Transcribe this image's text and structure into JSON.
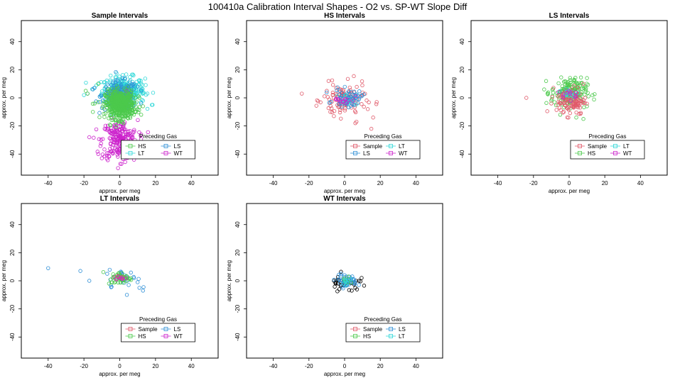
{
  "figure_title": "100410a   Calibration Interval Shapes - O2 vs. SP-WT Slope Diff",
  "colors": {
    "Sample": "#e05a6a",
    "HS": "#4cc94c",
    "LS": "#2e8fd6",
    "LT": "#30d8d8",
    "WT": "#cc22cc",
    "black": "#000000"
  },
  "chart_data": [
    {
      "type": "scatter",
      "title": "Sample Intervals",
      "xlabel": "approx. per meg",
      "ylabel": "approx. per meg",
      "xlim": [
        -55,
        55
      ],
      "ylim": [
        -55,
        55
      ],
      "xticks": [
        -40,
        -20,
        0,
        20,
        40
      ],
      "yticks": [
        -40,
        -20,
        0,
        20,
        40
      ],
      "legend": {
        "title": "Preceding Gas",
        "placement": "bottom-center",
        "entries": [
          "HS",
          "LS",
          "LT",
          "WT"
        ]
      },
      "series": [
        {
          "name": "LT",
          "color_key": "LT",
          "center": [
            2,
            5
          ],
          "spread": [
            6,
            5
          ],
          "count": 320,
          "outliers": [
            [
              -13,
              9
            ],
            [
              -20,
              2
            ],
            [
              -14,
              7
            ],
            [
              12,
              4
            ],
            [
              13,
              -2
            ],
            [
              18,
              -5
            ],
            [
              10,
              -8
            ]
          ]
        },
        {
          "name": "LS",
          "color_key": "LS",
          "center": [
            0,
            2
          ],
          "spread": [
            5,
            5
          ],
          "count": 180,
          "outliers": [
            [
              -18,
              3
            ],
            [
              -15,
              6
            ],
            [
              10,
              8
            ],
            [
              12,
              -4
            ]
          ]
        },
        {
          "name": "WT",
          "color_key": "WT",
          "center": [
            0,
            -30
          ],
          "spread": [
            5,
            7
          ],
          "count": 240,
          "outliers": [
            [
              -12,
              -40
            ],
            [
              -10,
              -43
            ],
            [
              8,
              -44
            ],
            [
              1,
              -47
            ],
            [
              -17,
              -28
            ],
            [
              12,
              -26
            ],
            [
              -4,
              3
            ],
            [
              4,
              5
            ]
          ]
        },
        {
          "name": "HS",
          "color_key": "HS",
          "center": [
            0,
            -5
          ],
          "spread": [
            4,
            5
          ],
          "count": 520,
          "outliers": [
            [
              -18,
              3
            ],
            [
              -19,
              5
            ],
            [
              -14,
              -4
            ],
            [
              -12,
              10
            ],
            [
              -15,
              -10
            ],
            [
              10,
              -8
            ],
            [
              13,
              -6
            ],
            [
              11,
              0
            ],
            [
              8,
              2
            ],
            [
              12,
              -12
            ]
          ]
        }
      ]
    },
    {
      "type": "scatter",
      "title": "HS Intervals",
      "xlabel": "approx. per meg",
      "ylabel": "approx. per meg",
      "xlim": [
        -55,
        55
      ],
      "ylim": [
        -55,
        55
      ],
      "xticks": [
        -40,
        -20,
        0,
        20,
        40
      ],
      "yticks": [
        -40,
        -20,
        0,
        20,
        40
      ],
      "legend": {
        "title": "Preceding Gas",
        "placement": "bottom-center",
        "entries": [
          "Sample",
          "LT",
          "LS",
          "WT"
        ]
      },
      "series": [
        {
          "name": "Sample",
          "color_key": "Sample",
          "center": [
            0,
            -2
          ],
          "spread": [
            6,
            6
          ],
          "count": 110,
          "outliers": [
            [
              -24,
              3
            ],
            [
              -9,
              12
            ],
            [
              -10,
              5
            ],
            [
              -8,
              -10
            ],
            [
              13,
              -8
            ],
            [
              16,
              -14
            ],
            [
              15,
              -22
            ],
            [
              6,
              -18
            ],
            [
              18,
              -3
            ],
            [
              -6,
              -13
            ],
            [
              10,
              2
            ]
          ]
        },
        {
          "name": "LS",
          "color_key": "LS",
          "center": [
            2,
            0
          ],
          "spread": [
            4,
            3
          ],
          "count": 60,
          "outliers": []
        },
        {
          "name": "LT",
          "color_key": "LT",
          "center": [
            1,
            -1
          ],
          "spread": [
            3,
            2
          ],
          "count": 15,
          "outliers": []
        },
        {
          "name": "WT",
          "color_key": "WT",
          "center": [
            0,
            -1
          ],
          "spread": [
            3,
            2
          ],
          "count": 15,
          "outliers": []
        }
      ]
    },
    {
      "type": "scatter",
      "title": "LS Intervals",
      "xlabel": "approx. per meg",
      "ylabel": "approx. per meg",
      "xlim": [
        -55,
        55
      ],
      "ylim": [
        -55,
        55
      ],
      "xticks": [
        -40,
        -20,
        0,
        20,
        40
      ],
      "yticks": [
        -40,
        -20,
        0,
        20,
        40
      ],
      "legend": {
        "title": "Preceding Gas",
        "placement": "bottom-center",
        "entries": [
          "Sample",
          "LT",
          "HS",
          "WT"
        ]
      },
      "series": [
        {
          "name": "HS",
          "color_key": "HS",
          "center": [
            0,
            4
          ],
          "spread": [
            5,
            5
          ],
          "count": 160,
          "outliers": [
            [
              -14,
              6
            ],
            [
              -12,
              3
            ],
            [
              -10,
              -2
            ],
            [
              9,
              8
            ],
            [
              10,
              -6
            ],
            [
              -5,
              -12
            ],
            [
              4,
              -14
            ],
            [
              8,
              -15
            ]
          ]
        },
        {
          "name": "Sample",
          "color_key": "Sample",
          "center": [
            1,
            -2
          ],
          "spread": [
            4,
            5
          ],
          "count": 110,
          "outliers": [
            [
              -24,
              0
            ],
            [
              -10,
              -4
            ],
            [
              -3,
              -10
            ],
            [
              9,
              0
            ],
            [
              8,
              10
            ]
          ]
        },
        {
          "name": "LT",
          "color_key": "LT",
          "center": [
            0,
            3
          ],
          "spread": [
            3,
            2
          ],
          "count": 15,
          "outliers": []
        },
        {
          "name": "WT",
          "color_key": "WT",
          "center": [
            0,
            3
          ],
          "spread": [
            3,
            2
          ],
          "count": 12,
          "outliers": []
        }
      ]
    },
    {
      "type": "scatter",
      "title": "LT Intervals",
      "xlabel": "approx. per meg",
      "ylabel": "approx. per meg",
      "xlim": [
        -55,
        55
      ],
      "ylim": [
        -55,
        55
      ],
      "xticks": [
        -40,
        -20,
        0,
        20,
        40
      ],
      "yticks": [
        -40,
        -20,
        0,
        20,
        40
      ],
      "legend": {
        "title": "Preceding Gas",
        "placement": "bottom-center",
        "entries": [
          "Sample",
          "LS",
          "HS",
          "WT"
        ]
      },
      "series": [
        {
          "name": "LS",
          "color_key": "LS",
          "center": [
            2,
            2
          ],
          "spread": [
            4,
            3
          ],
          "count": 30,
          "outliers": [
            [
              -40,
              9
            ],
            [
              -22,
              7
            ],
            [
              -17,
              0
            ],
            [
              -7,
              5
            ],
            [
              -5,
              -3
            ],
            [
              8,
              2
            ],
            [
              11,
              -5
            ],
            [
              13,
              -7
            ],
            [
              5,
              -3
            ],
            [
              4,
              -10
            ],
            [
              10,
              -1
            ]
          ]
        },
        {
          "name": "HS",
          "color_key": "HS",
          "center": [
            1,
            2
          ],
          "spread": [
            3,
            2
          ],
          "count": 45,
          "outliers": [
            [
              -6,
              -2
            ],
            [
              -5,
              1
            ],
            [
              6,
              2
            ]
          ]
        },
        {
          "name": "Sample",
          "color_key": "Sample",
          "center": [
            0,
            2
          ],
          "spread": [
            2,
            1
          ],
          "count": 6,
          "outliers": []
        },
        {
          "name": "WT",
          "color_key": "WT",
          "center": [
            0,
            2
          ],
          "spread": [
            2,
            1
          ],
          "count": 6,
          "outliers": []
        }
      ]
    },
    {
      "type": "scatter",
      "title": "WT Intervals",
      "xlabel": "approx. per meg",
      "ylabel": "approx. per meg",
      "xlim": [
        -55,
        55
      ],
      "ylim": [
        -55,
        55
      ],
      "xticks": [
        -40,
        -20,
        0,
        20,
        40
      ],
      "yticks": [
        -40,
        -20,
        0,
        20,
        40
      ],
      "legend": {
        "title": "Preceding Gas",
        "placement": "bottom-center",
        "entries": [
          "Sample",
          "LS",
          "HS",
          "LT"
        ]
      },
      "series": [
        {
          "name": "Sample (black)",
          "color_key": "black",
          "center": [
            0,
            -1
          ],
          "spread": [
            4,
            3
          ],
          "count": 30,
          "outliers": [
            [
              -5,
              -2
            ],
            [
              -6,
              0
            ],
            [
              8,
              0
            ],
            [
              6,
              -5
            ],
            [
              -3,
              -6
            ],
            [
              4,
              -7
            ]
          ]
        },
        {
          "name": "LS",
          "color_key": "LS",
          "center": [
            1,
            0
          ],
          "spread": [
            3,
            2
          ],
          "count": 45,
          "outliers": [
            [
              8,
              -3
            ],
            [
              -2,
              5
            ],
            [
              0,
              4
            ]
          ]
        },
        {
          "name": "HS",
          "color_key": "HS",
          "center": [
            1,
            0
          ],
          "spread": [
            2,
            2
          ],
          "count": 8,
          "outliers": []
        },
        {
          "name": "LT",
          "color_key": "LT",
          "center": [
            1,
            0
          ],
          "spread": [
            2,
            2
          ],
          "count": 8,
          "outliers": []
        }
      ]
    }
  ]
}
